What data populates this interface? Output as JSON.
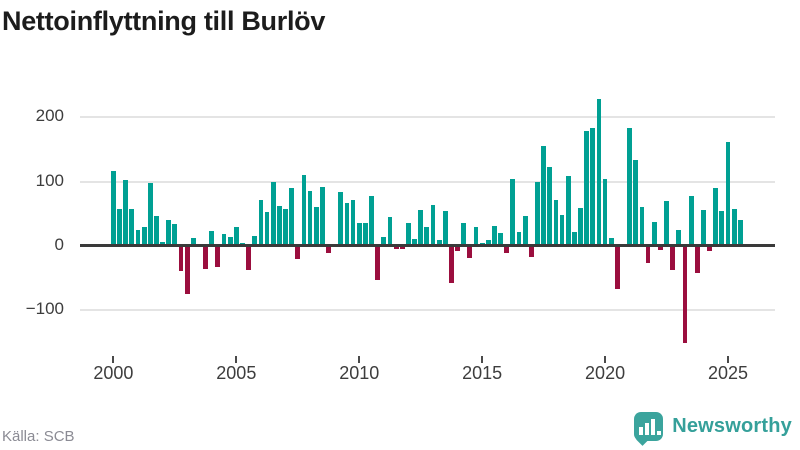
{
  "title": "Nettoinflyttning till Burlöv",
  "source": "Källa: SCB",
  "logo": {
    "text": "Newsworthy",
    "color": "#3BA49D",
    "text_color": "#35A09A"
  },
  "chart_data": {
    "type": "bar",
    "title": "Nettoinflyttning till Burlöv",
    "xlabel": "",
    "ylabel": "",
    "x_unit": "quarter",
    "x_start": "2000-Q1",
    "x_end": "2025-Q3",
    "x_tick_years": [
      2000,
      2005,
      2010,
      2015,
      2020,
      2025
    ],
    "y_ticks": [
      200,
      100,
      0,
      -100
    ],
    "ylim": [
      -170,
      250
    ],
    "grid": true,
    "legend": false,
    "colors": {
      "positive": "#00A093",
      "negative": "#9B0E3E"
    },
    "values": [
      117,
      58,
      102,
      58,
      25,
      30,
      98,
      47,
      6,
      40,
      34,
      -39,
      -74,
      13,
      0,
      -35,
      23,
      -33,
      18,
      14,
      29,
      5,
      -38,
      16,
      72,
      53,
      100,
      62,
      58,
      90,
      -20,
      111,
      86,
      61,
      91,
      -11,
      0,
      84,
      67,
      71,
      36,
      36,
      78,
      -53,
      14,
      45,
      -5,
      -4,
      36,
      11,
      56,
      30,
      63,
      10,
      54,
      -57,
      -7,
      35,
      -18,
      29,
      5,
      9,
      31,
      20,
      -11,
      104,
      21,
      47,
      -17,
      100,
      155,
      123,
      71,
      48,
      109,
      22,
      59,
      178,
      184,
      228,
      104,
      12,
      -67,
      0,
      183,
      133,
      60,
      -26,
      38,
      -6,
      70,
      -37,
      25,
      -151,
      77,
      -42,
      56,
      -7,
      90,
      54,
      162,
      57,
      40
    ]
  }
}
